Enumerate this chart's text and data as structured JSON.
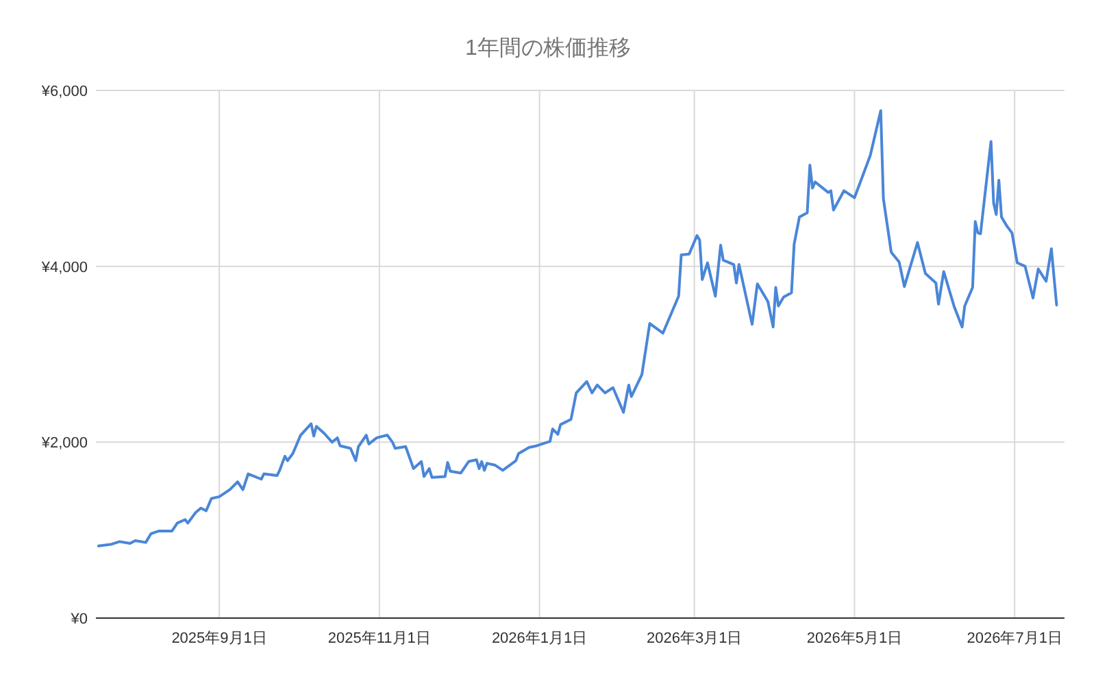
{
  "chart_data": {
    "type": "line",
    "title": "1年間の株価推移",
    "xlim": [
      "2025-07-16",
      "2026-07-20"
    ],
    "xticks": [
      {
        "value": "2025-09-01",
        "label": "2025年9月1日"
      },
      {
        "value": "2025-11-01",
        "label": "2025年11月1日"
      },
      {
        "value": "2026-01-01",
        "label": "2026年1月1日"
      },
      {
        "value": "2026-03-01",
        "label": "2026年3月1日"
      },
      {
        "value": "2026-05-01",
        "label": "2026年5月1日"
      },
      {
        "value": "2026-07-01",
        "label": "2026年7月1日"
      }
    ],
    "ylim": [
      0,
      6000
    ],
    "yticks": [
      {
        "value": 0,
        "label": "¥0"
      },
      {
        "value": 2000,
        "label": "¥2,000"
      },
      {
        "value": 4000,
        "label": "¥4,000"
      },
      {
        "value": 6000,
        "label": "¥6,000"
      }
    ],
    "grid": true,
    "marker": "none",
    "line_style": "solid",
    "x": [
      "2025-07-17",
      "2025-07-22",
      "2025-07-25",
      "2025-07-29",
      "2025-07-31",
      "2025-08-04",
      "2025-08-06",
      "2025-08-09",
      "2025-08-14",
      "2025-08-16",
      "2025-08-19",
      "2025-08-20",
      "2025-08-23",
      "2025-08-25",
      "2025-08-27",
      "2025-08-29",
      "2025-09-01",
      "2025-09-05",
      "2025-09-08",
      "2025-09-10",
      "2025-09-12",
      "2025-09-17",
      "2025-09-18",
      "2025-09-23",
      "2025-09-24",
      "2025-09-26",
      "2025-09-27",
      "2025-09-29",
      "2025-10-02",
      "2025-10-06",
      "2025-10-07",
      "2025-10-08",
      "2025-10-11",
      "2025-10-14",
      "2025-10-16",
      "2025-10-17",
      "2025-10-21",
      "2025-10-23",
      "2025-10-24",
      "2025-10-27",
      "2025-10-28",
      "2025-10-31",
      "2025-11-04",
      "2025-11-06",
      "2025-11-07",
      "2025-11-11",
      "2025-11-14",
      "2025-11-17",
      "2025-11-18",
      "2025-11-20",
      "2025-11-21",
      "2025-11-26",
      "2025-11-27",
      "2025-11-28",
      "2025-12-02",
      "2025-12-05",
      "2025-12-08",
      "2025-12-09",
      "2025-12-10",
      "2025-12-11",
      "2025-12-12",
      "2025-12-15",
      "2025-12-18",
      "2025-12-23",
      "2025-12-24",
      "2025-12-28",
      "2025-12-31",
      "2026-01-02",
      "2026-01-05",
      "2026-01-06",
      "2026-01-08",
      "2026-01-09",
      "2026-01-13",
      "2026-01-15",
      "2026-01-19",
      "2026-01-21",
      "2026-01-23",
      "2026-01-26",
      "2026-01-29",
      "2026-02-02",
      "2026-02-04",
      "2026-02-05",
      "2026-02-09",
      "2026-02-12",
      "2026-02-17",
      "2026-02-19",
      "2026-02-23",
      "2026-02-24",
      "2026-02-27",
      "2026-03-02",
      "2026-03-03",
      "2026-03-04",
      "2026-03-06",
      "2026-03-09",
      "2026-03-11",
      "2026-03-12",
      "2026-03-16",
      "2026-03-17",
      "2026-03-18",
      "2026-03-23",
      "2026-03-25",
      "2026-03-29",
      "2026-03-31",
      "2026-04-01",
      "2026-04-02",
      "2026-04-04",
      "2026-04-07",
      "2026-04-08",
      "2026-04-10",
      "2026-04-13",
      "2026-04-14",
      "2026-04-15",
      "2026-04-16",
      "2026-04-21",
      "2026-04-22",
      "2026-04-23",
      "2026-04-27",
      "2026-05-01",
      "2026-05-07",
      "2026-05-11",
      "2026-05-12",
      "2026-05-15",
      "2026-05-18",
      "2026-05-20",
      "2026-05-25",
      "2026-05-28",
      "2026-06-01",
      "2026-06-02",
      "2026-06-04",
      "2026-06-08",
      "2026-06-11",
      "2026-06-12",
      "2026-06-15",
      "2026-06-16",
      "2026-06-17",
      "2026-06-18",
      "2026-06-22",
      "2026-06-23",
      "2026-06-24",
      "2026-06-25",
      "2026-06-26",
      "2026-06-28",
      "2026-06-30",
      "2026-07-02",
      "2026-07-05",
      "2026-07-08",
      "2026-07-10",
      "2026-07-13",
      "2026-07-15",
      "2026-07-17"
    ],
    "series": [
      {
        "color": "#4a86d8",
        "values": [
          820,
          840,
          870,
          850,
          880,
          860,
          960,
          990,
          990,
          1080,
          1120,
          1080,
          1200,
          1250,
          1220,
          1360,
          1380,
          1460,
          1550,
          1460,
          1640,
          1580,
          1640,
          1620,
          1680,
          1840,
          1790,
          1870,
          2080,
          2210,
          2070,
          2180,
          2100,
          2000,
          2050,
          1960,
          1930,
          1790,
          1950,
          2080,
          1980,
          2050,
          2080,
          2000,
          1930,
          1950,
          1700,
          1780,
          1610,
          1700,
          1600,
          1610,
          1770,
          1670,
          1650,
          1780,
          1800,
          1700,
          1780,
          1680,
          1760,
          1740,
          1680,
          1790,
          1870,
          1940,
          1960,
          1980,
          2010,
          2150,
          2090,
          2200,
          2260,
          2560,
          2690,
          2560,
          2650,
          2560,
          2620,
          2340,
          2650,
          2520,
          2770,
          3350,
          3240,
          3380,
          3660,
          4130,
          4140,
          4350,
          4300,
          3850,
          4040,
          3660,
          4240,
          4070,
          4020,
          3810,
          4020,
          3340,
          3800,
          3600,
          3310,
          3760,
          3550,
          3650,
          3700,
          4250,
          4560,
          4610,
          5150,
          4890,
          4960,
          4840,
          4860,
          4640,
          4860,
          4780,
          5260,
          5770,
          4770,
          4160,
          4050,
          3770,
          4270,
          3920,
          3810,
          3570,
          3940,
          3540,
          3310,
          3550,
          3760,
          4510,
          4380,
          4370,
          5420,
          4720,
          4590,
          4980,
          4560,
          4460,
          4380,
          4040,
          4000,
          3640,
          3970,
          3830,
          4200,
          3560
        ]
      }
    ]
  }
}
